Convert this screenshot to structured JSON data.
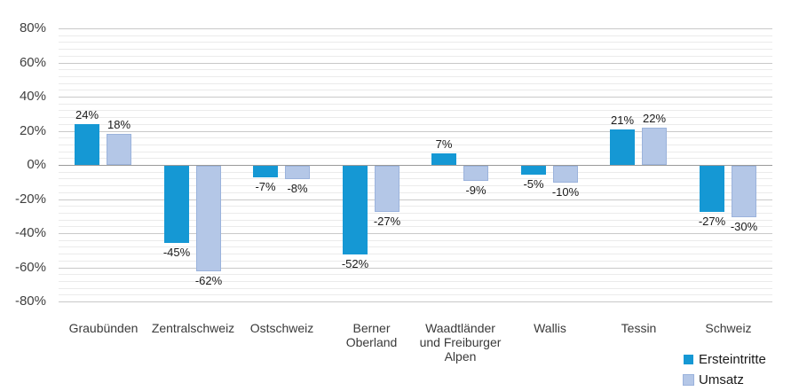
{
  "chart_data": {
    "type": "bar",
    "title": "",
    "categories": [
      "Graubünden",
      "Zentralschweiz",
      "Ostschweiz",
      "Berner Oberland",
      "Waadtländer und Freiburger Alpen",
      "Wallis",
      "Tessin",
      "Schweiz"
    ],
    "series": [
      {
        "name": "Ersteintritte",
        "color": "#1598d4",
        "values": [
          24,
          -45,
          -7,
          -52,
          7,
          -5,
          21,
          -27
        ],
        "labels": [
          "24%",
          "-45%",
          "-7%",
          "-52%",
          "7%",
          "-5%",
          "21%",
          "-27%"
        ]
      },
      {
        "name": "Umsatz",
        "color": "#b4c7e7",
        "border_color": "#9bb3dc",
        "values": [
          18,
          -62,
          -8,
          -27,
          -9,
          -10,
          22,
          -30
        ],
        "labels": [
          "18%",
          "-62%",
          "-8%",
          "-27%",
          "-9%",
          "-10%",
          "22%",
          "-30%"
        ]
      }
    ],
    "y_axis": {
      "min": -80,
      "max": 80,
      "major_step": 20,
      "minor_step": 4,
      "tick_labels": [
        "80%",
        "60%",
        "40%",
        "20%",
        "0%",
        "-20%",
        "-40%",
        "-60%",
        "-80%"
      ]
    },
    "grid": true,
    "legend_position": "bottom-right",
    "colors": {
      "major_grid": "#c9c9c9",
      "minor_grid": "#ebebeb",
      "zero_line": "#9a9a9a"
    }
  }
}
